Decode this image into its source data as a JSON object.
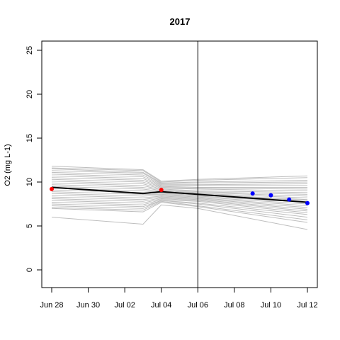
{
  "chart_data": {
    "type": "line",
    "title": "2017",
    "xlabel": "",
    "ylabel": "O2 (mg L-1)",
    "x_ticks": [
      "Jun 28",
      "Jun 30",
      "Jul 02",
      "Jul 04",
      "Jul 06",
      "Jul 08",
      "Jul 10",
      "Jul 12"
    ],
    "x_tick_days": [
      0,
      2,
      4,
      6,
      8,
      10,
      12,
      14
    ],
    "xlim": [
      "Jun 28",
      "Jul 12"
    ],
    "y_ticks": [
      "0",
      "5",
      "10",
      "15",
      "20",
      "25"
    ],
    "y_tick_values": [
      0,
      5,
      10,
      15,
      20,
      25
    ],
    "ylim": [
      -2,
      26
    ],
    "vertical_line_at": "Jul 06",
    "colors": {
      "ensemble": "#bebebe",
      "mean": "#000000",
      "observed_past": "#ff0000",
      "observed_future": "#0000ff"
    },
    "ensemble_dates": [
      "Jun 28",
      "Jul 03",
      "Jul 04",
      "Jul 06",
      "Jul 12"
    ],
    "ensemble_series": [
      [
        11.8,
        11.4,
        10.1,
        10.3,
        10.7
      ],
      [
        11.6,
        11.3,
        10.0,
        10.2,
        10.5
      ],
      [
        11.5,
        11.1,
        9.9,
        10.0,
        10.2
      ],
      [
        11.3,
        11.0,
        9.8,
        9.9,
        10.0
      ],
      [
        11.1,
        10.8,
        9.7,
        9.7,
        9.8
      ],
      [
        10.9,
        10.6,
        9.6,
        9.6,
        9.6
      ],
      [
        10.7,
        10.4,
        9.5,
        9.4,
        9.4
      ],
      [
        10.5,
        10.2,
        9.4,
        9.3,
        9.2
      ],
      [
        10.3,
        10.0,
        9.3,
        9.2,
        9.0
      ],
      [
        10.1,
        9.8,
        9.2,
        9.0,
        8.8
      ],
      [
        9.9,
        9.6,
        9.1,
        8.9,
        8.6
      ],
      [
        9.7,
        9.4,
        9.0,
        8.8,
        8.4
      ],
      [
        9.5,
        9.2,
        8.9,
        8.7,
        8.2
      ],
      [
        9.3,
        9.0,
        8.8,
        8.6,
        8.0
      ],
      [
        9.1,
        8.8,
        8.7,
        8.5,
        7.9
      ],
      [
        8.9,
        8.6,
        8.6,
        8.4,
        7.7
      ],
      [
        8.7,
        8.4,
        8.5,
        8.3,
        7.5
      ],
      [
        8.5,
        8.2,
        8.4,
        8.2,
        7.3
      ],
      [
        8.3,
        8.0,
        8.3,
        8.1,
        7.1
      ],
      [
        8.1,
        7.8,
        8.2,
        8.0,
        6.9
      ],
      [
        7.9,
        7.6,
        8.1,
        7.9,
        6.7
      ],
      [
        7.7,
        7.4,
        8.0,
        7.8,
        6.5
      ],
      [
        7.5,
        7.2,
        7.9,
        7.6,
        6.3
      ],
      [
        7.3,
        7.0,
        7.9,
        7.5,
        6.0
      ],
      [
        7.1,
        6.8,
        7.8,
        7.3,
        5.7
      ],
      [
        7.0,
        6.6,
        7.7,
        7.2,
        5.4
      ],
      [
        6.0,
        5.2,
        7.4,
        7.0,
        4.6
      ]
    ],
    "mean_dates": [
      "Jun 28",
      "Jul 03",
      "Jul 04",
      "Jul 12"
    ],
    "mean_values": [
      9.4,
      8.7,
      8.9,
      7.7
    ],
    "observed_past": [
      {
        "x": "Jun 28",
        "y": 9.2
      },
      {
        "x": "Jul 04",
        "y": 9.1
      }
    ],
    "observed_future": [
      {
        "x": "Jul 09",
        "y": 8.7
      },
      {
        "x": "Jul 10",
        "y": 8.5
      },
      {
        "x": "Jul 11",
        "y": 8.0
      },
      {
        "x": "Jul 12",
        "y": 7.6
      }
    ]
  }
}
